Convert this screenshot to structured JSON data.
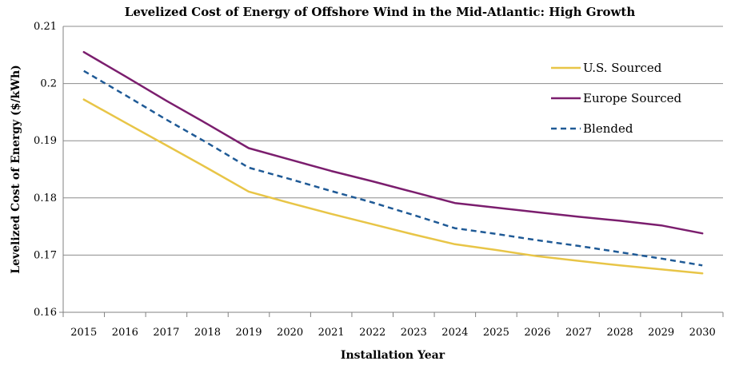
{
  "chart_data": {
    "type": "line",
    "title": "Levelized Cost of Energy of Offshore Wind in the Mid-Atlantic: High Growth",
    "xlabel": "Installation Year",
    "ylabel": "Levelized Cost of Energy ($/kWh)",
    "x": [
      "2015",
      "2016",
      "2017",
      "2018",
      "2019",
      "2020",
      "2021",
      "2022",
      "2023",
      "2024",
      "2025",
      "2026",
      "2027",
      "2028",
      "2029",
      "2030"
    ],
    "yticks": [
      "0.16",
      "0.17",
      "0.18",
      "0.19",
      "0.2",
      "0.21"
    ],
    "ylim": [
      0.16,
      0.21
    ],
    "grid": true,
    "legend_position": "top-right",
    "series": [
      {
        "name": "U.S. Sourced",
        "color": "#E8C547",
        "style": "solid",
        "values": [
          0.1972,
          0.1932,
          0.1892,
          0.1852,
          0.1811,
          0.1791,
          0.1772,
          0.1754,
          0.1736,
          0.1719,
          0.1709,
          0.1698,
          0.169,
          0.1682,
          0.1675,
          0.1668
        ]
      },
      {
        "name": "Europe Sourced",
        "color": "#7B1E6E",
        "style": "solid",
        "values": [
          0.2055,
          0.2013,
          0.197,
          0.1929,
          0.1887,
          0.1867,
          0.1847,
          0.1829,
          0.181,
          0.1791,
          0.1783,
          0.1775,
          0.1767,
          0.176,
          0.1752,
          0.1738
        ]
      },
      {
        "name": "Blended",
        "color": "#1F5A96",
        "style": "dashed",
        "values": [
          0.2022,
          0.198,
          0.1937,
          0.1896,
          0.1853,
          0.1833,
          0.1812,
          0.1792,
          0.177,
          0.1747,
          0.1737,
          0.1726,
          0.1716,
          0.1705,
          0.1694,
          0.1682
        ]
      }
    ]
  }
}
